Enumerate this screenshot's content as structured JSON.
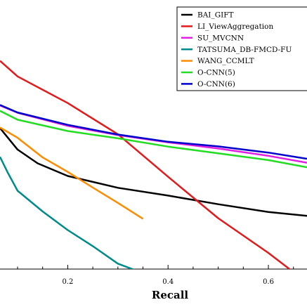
{
  "chart_data": {
    "type": "line",
    "title": "",
    "xlabel": "Recall",
    "ylabel": "",
    "xlim": [
      0.065,
      0.677
    ],
    "ylim": [
      0.0,
      1.0
    ],
    "x_ticks": [
      "0.2",
      "0.4",
      "0.6"
    ],
    "grid": false,
    "legend_position": "top-right",
    "series": [
      {
        "name": "BAI_GIFT",
        "color": "#000000",
        "x": [
          0.065,
          0.1,
          0.14,
          0.2,
          0.3,
          0.4,
          0.5,
          0.6,
          0.677
        ],
        "y": [
          0.524,
          0.444,
          0.393,
          0.346,
          0.302,
          0.273,
          0.241,
          0.212,
          0.198
        ]
      },
      {
        "name": "LI_ViewAggregation",
        "color": "#e31a1c",
        "x": [
          0.065,
          0.1,
          0.2,
          0.3,
          0.4,
          0.5,
          0.6,
          0.677
        ],
        "y": [
          0.774,
          0.716,
          0.617,
          0.501,
          0.343,
          0.189,
          0.06,
          -0.05
        ]
      },
      {
        "name": "SU_MVCNN",
        "color": "#e020e0",
        "x": [
          0.065,
          0.1,
          0.2,
          0.3,
          0.4,
          0.5,
          0.6,
          0.677
        ],
        "y": [
          0.608,
          0.581,
          0.532,
          0.498,
          0.471,
          0.448,
          0.421,
          0.395
        ]
      },
      {
        "name": "TATSUMA_DB-FMCD-FU",
        "color": "#008b8b",
        "x": [
          0.065,
          0.08,
          0.1,
          0.15,
          0.2,
          0.25,
          0.3,
          0.35
        ],
        "y": [
          0.417,
          0.36,
          0.291,
          0.214,
          0.145,
          0.085,
          0.02,
          -0.015
        ]
      },
      {
        "name": "WANG_CCMLT",
        "color": "#ff8c00",
        "x": [
          0.065,
          0.1,
          0.15,
          0.2,
          0.25,
          0.3,
          0.35
        ],
        "y": [
          0.526,
          0.488,
          0.415,
          0.361,
          0.303,
          0.246,
          0.187
        ]
      },
      {
        "name": "O-CNN(5)",
        "color": "#22dd22",
        "x": [
          0.065,
          0.1,
          0.2,
          0.3,
          0.4,
          0.5,
          0.6,
          0.677
        ],
        "y": [
          0.588,
          0.555,
          0.513,
          0.486,
          0.455,
          0.43,
          0.405,
          0.378
        ]
      },
      {
        "name": "O-CNN(6)",
        "color": "#0000cc",
        "x": [
          0.065,
          0.1,
          0.2,
          0.3,
          0.4,
          0.5,
          0.6,
          0.677
        ],
        "y": [
          0.61,
          0.582,
          0.536,
          0.5,
          0.473,
          0.456,
          0.433,
          0.41
        ]
      }
    ]
  }
}
